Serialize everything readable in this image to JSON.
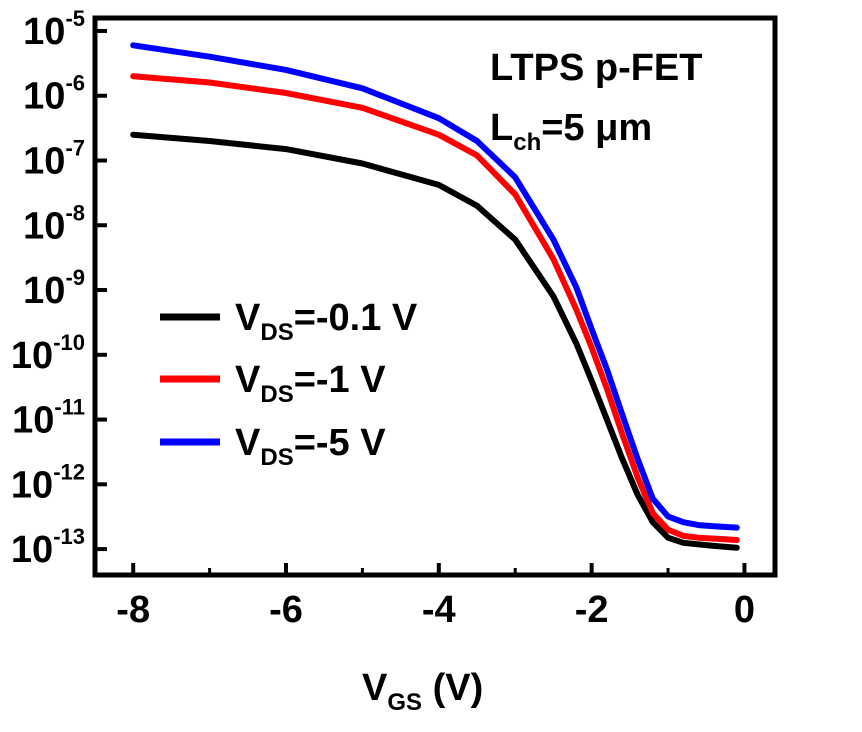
{
  "chart_data": {
    "type": "line",
    "title": "",
    "xlabel": {
      "main": "V",
      "sub": "GS",
      "unit": " (V)"
    },
    "ylabel": "",
    "xlim": [
      -8.5,
      0.4
    ],
    "ylim_log10": [
      -13.4,
      -4.8
    ],
    "y_scale": "log",
    "grid": false,
    "x_ticks": [
      -8,
      -6,
      -4,
      -2,
      0
    ],
    "x_tick_labels": [
      "-8",
      "-6",
      "-4",
      "-2",
      "0"
    ],
    "y_ticks": [
      {
        "base": "10",
        "exp": "-5"
      },
      {
        "base": "10",
        "exp": "-6"
      },
      {
        "base": "10",
        "exp": "-7"
      },
      {
        "base": "10",
        "exp": "-8"
      },
      {
        "base": "10",
        "exp": "-9"
      },
      {
        "base": "10",
        "exp": "-10"
      },
      {
        "base": "10",
        "exp": "-11"
      },
      {
        "base": "10",
        "exp": "-12"
      },
      {
        "base": "10",
        "exp": "-13"
      }
    ],
    "annotation": {
      "line1": "LTPS p-FET",
      "line2_main": "L",
      "line2_sub": "ch",
      "line2_rest": "=5 μm"
    },
    "legend_placement": "center-left",
    "series": [
      {
        "name": "V_DS=-0.1 V",
        "label_main": "V",
        "label_sub": "DS",
        "label_rest": "=-0.1 V",
        "color": "#000000",
        "x": [
          -8,
          -7,
          -6,
          -5,
          -4,
          -3.5,
          -3,
          -2.5,
          -2.2,
          -2,
          -1.8,
          -1.6,
          -1.4,
          -1.2,
          -1.0,
          -0.8,
          -0.6,
          -0.4,
          -0.1
        ],
        "y": [
          2.5e-07,
          2e-07,
          1.5e-07,
          9e-08,
          4.2e-08,
          2e-08,
          6e-09,
          8e-10,
          1.5e-10,
          4e-11,
          1e-11,
          2.5e-12,
          7e-13,
          2.6e-13,
          1.5e-13,
          1.25e-13,
          1.18e-13,
          1.12e-13,
          1.05e-13
        ]
      },
      {
        "name": "V_DS=-1 V",
        "label_main": "V",
        "label_sub": "DS",
        "label_rest": "=-1 V",
        "color": "#ff0000",
        "x": [
          -8,
          -7,
          -6,
          -5,
          -4,
          -3.5,
          -3,
          -2.5,
          -2.2,
          -2,
          -1.8,
          -1.6,
          -1.4,
          -1.2,
          -1.0,
          -0.8,
          -0.6,
          -0.4,
          -0.1
        ],
        "y": [
          2e-06,
          1.6e-06,
          1.1e-06,
          6.5e-07,
          2.5e-07,
          1.2e-07,
          3e-08,
          3e-09,
          5e-10,
          1.3e-10,
          3e-11,
          6e-12,
          1.3e-12,
          3.6e-13,
          2e-13,
          1.6e-13,
          1.5e-13,
          1.45e-13,
          1.38e-13
        ]
      },
      {
        "name": "V_DS=-5 V",
        "label_main": "V",
        "label_sub": "DS",
        "label_rest": "=-5 V",
        "color": "#0000ff",
        "x": [
          -8,
          -7,
          -6,
          -5,
          -4,
          -3.5,
          -3,
          -2.5,
          -2.2,
          -2,
          -1.8,
          -1.6,
          -1.4,
          -1.2,
          -1.0,
          -0.8,
          -0.6,
          -0.4,
          -0.1
        ],
        "y": [
          6e-06,
          4e-06,
          2.5e-06,
          1.3e-06,
          4.5e-07,
          2e-07,
          5.5e-08,
          6e-09,
          1.1e-09,
          2.5e-10,
          6e-11,
          1.2e-11,
          2.5e-12,
          6e-13,
          3.2e-13,
          2.6e-13,
          2.35e-13,
          2.25e-13,
          2.15e-13
        ]
      }
    ]
  }
}
